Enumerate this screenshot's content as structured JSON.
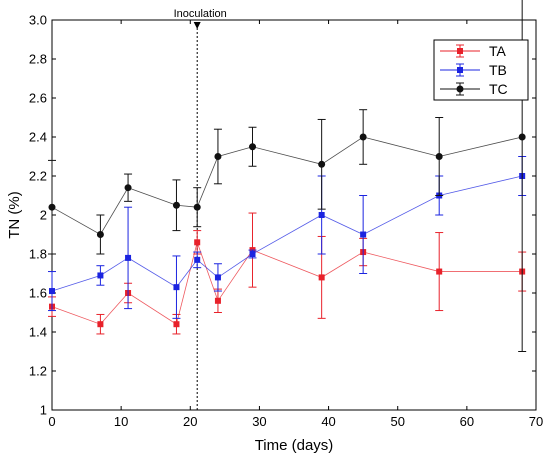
{
  "chart_data": {
    "type": "line",
    "xlabel": "Time (days)",
    "ylabel": "TN (%)",
    "xlim": [
      0,
      70
    ],
    "ylim": [
      1,
      3
    ],
    "xticks": [
      0,
      10,
      20,
      30,
      40,
      50,
      60,
      70
    ],
    "yticks": [
      1,
      1.2,
      1.4,
      1.6,
      1.8,
      2,
      2.2,
      2.4,
      2.6,
      2.8,
      3
    ],
    "ytick_labels": [
      "1",
      "1.2",
      "1.4",
      "1.6",
      "1.8",
      "2",
      "2.2",
      "2.4",
      "2.6",
      "2.8",
      "3.0"
    ],
    "grid": false,
    "legend_position": "top-right",
    "annotation": {
      "text": "Inoculation",
      "x": 21
    },
    "x": [
      0,
      7,
      11,
      18,
      21,
      24,
      29,
      39,
      45,
      56,
      68
    ],
    "series": [
      {
        "name": "TA",
        "color": "#e8212a",
        "marker": "square",
        "values": [
          1.53,
          1.44,
          1.6,
          1.44,
          1.86,
          1.56,
          1.82,
          1.68,
          1.81,
          1.71,
          1.71
        ],
        "errors": [
          0.05,
          0.05,
          0.05,
          0.05,
          0.06,
          0.06,
          0.19,
          0.21,
          0.07,
          0.2,
          0.1
        ]
      },
      {
        "name": "TB",
        "color": "#1b24e0",
        "marker": "square",
        "values": [
          1.61,
          1.69,
          1.78,
          1.63,
          1.77,
          1.68,
          1.8,
          2.0,
          1.9,
          2.1,
          2.2
        ],
        "errors": [
          0.1,
          0.05,
          0.26,
          0.16,
          0.04,
          0.07,
          0.02,
          0.2,
          0.2,
          0.1,
          0.1
        ]
      },
      {
        "name": "TC",
        "color": "#111111",
        "marker": "circle",
        "values": [
          2.04,
          1.9,
          2.14,
          2.05,
          2.04,
          2.3,
          2.35,
          2.26,
          2.4,
          2.3,
          2.4
        ],
        "errors": [
          0.24,
          0.1,
          0.07,
          0.13,
          0.1,
          0.14,
          0.1,
          0.23,
          0.14,
          0.2,
          1.1
        ]
      }
    ]
  }
}
